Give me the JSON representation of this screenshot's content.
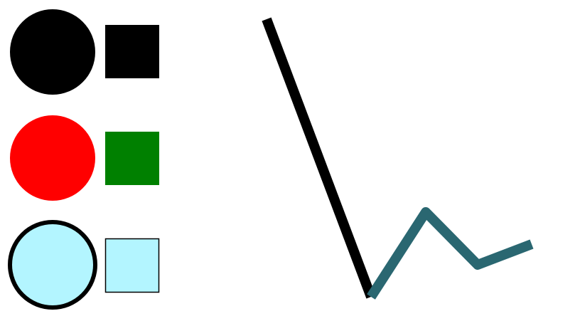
{
  "colors": {
    "background": "#ffffff",
    "black": "#000000",
    "red": "#ff0000",
    "green": "#008000",
    "light_cyan": "#b3f5ff",
    "teal": "#2a6771"
  },
  "legend_rows": [
    {
      "circle": {
        "fill": "black",
        "stroke": "none"
      },
      "square": {
        "fill": "black",
        "stroke": "none"
      }
    },
    {
      "circle": {
        "fill": "red",
        "stroke": "none"
      },
      "square": {
        "fill": "green",
        "stroke": "none"
      }
    },
    {
      "circle": {
        "fill": "light_cyan",
        "stroke": "black"
      },
      "square": {
        "fill": "light_cyan",
        "stroke": "black"
      }
    }
  ],
  "line_segments": [
    {
      "name": "black-descending-line",
      "color": "black"
    },
    {
      "name": "teal-zigzag-line",
      "color": "teal"
    }
  ]
}
